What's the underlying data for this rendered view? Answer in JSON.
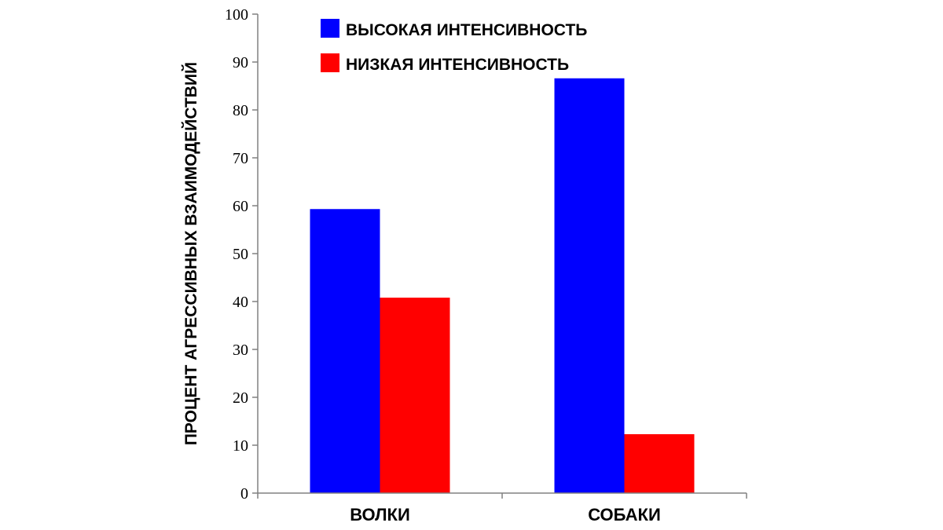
{
  "chart_data": {
    "type": "bar",
    "title": "",
    "xlabel": "",
    "ylabel": "ПРОЦЕНТ АГРЕССИВНЫХ ВЗАИМОДЕЙСТВИЙ",
    "ylim": [
      0,
      100
    ],
    "yticks": [
      0,
      10,
      20,
      30,
      40,
      50,
      60,
      70,
      80,
      90,
      100
    ],
    "grid": false,
    "legend_position": "top-center",
    "categories": [
      "ВОЛКИ",
      "СОБАКИ"
    ],
    "series": [
      {
        "name": "ВЫСОКАЯ ИНТЕНСИВНОСТЬ",
        "color": "#0000ff",
        "values": [
          59.3,
          86.6
        ]
      },
      {
        "name": "НИЗКАЯ ИНТЕНСИВНОСТЬ",
        "color": "#ff0000",
        "values": [
          40.8,
          12.3
        ]
      }
    ]
  }
}
